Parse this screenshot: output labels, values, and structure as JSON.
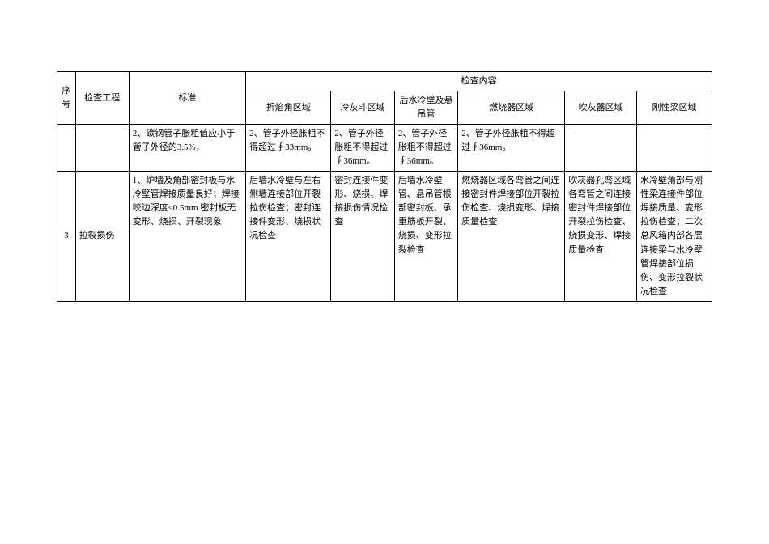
{
  "header": {
    "seq": "序号",
    "project": "检查工程",
    "standard": "标准",
    "content_group": "检查内容",
    "areas": {
      "c1": "折焰角区域",
      "c2": "冷灰斗区域",
      "c3": "后水冷壁及悬吊管",
      "c4": "燃烧器区域",
      "c5": "吹灰器区域",
      "c6": "刚性梁区域"
    }
  },
  "row_prev": {
    "std": "2、碳钢管子胀粗值应小于管子外径的3.5%，",
    "c1": "2、管子外径胀粗不得超过∮33mm。",
    "c2": "2、管子外径胀粗不得超过∮36mm。",
    "c3": "2、管子外径胀粗不得超过∮36mm。",
    "c4": "2、管子外径胀粗不得超过∮36mm。"
  },
  "row3": {
    "seq": "3",
    "project": "拉裂损伤",
    "std": "1、炉墙及角部密封板与水冷壁管焊接质量良好；焊接咬边深度≤0.5mm 密封板无变形、烧损、开裂现象",
    "c1": "后墙水冷壁与左右侧墙连接部位开裂拉伤检查；密封连接件变形、烧损状况检查",
    "c2": "密封连接件变形、烧损、焊接损伤情况检查",
    "c3": "后墙水冷壁管、悬吊管根部密封板、承重筋板开裂、烧损、变形拉裂检查",
    "c4": "燃烧器区域各弯管之间连接密封件焊接部位开裂拉伤检查、烧损变形、焊接质量检查",
    "c5": "吹灰器孔弯区域各弯管之间连接密封件焊接部位开裂拉伤检查、烧损变形、焊接质量检查",
    "c6": "水冷壁角部与刚性梁连接件部位焊接质量、变形拉伤检查；二次总风箱内部各层连接梁与水冷壁管焊接部位损伤、变形拉裂状况检查"
  }
}
